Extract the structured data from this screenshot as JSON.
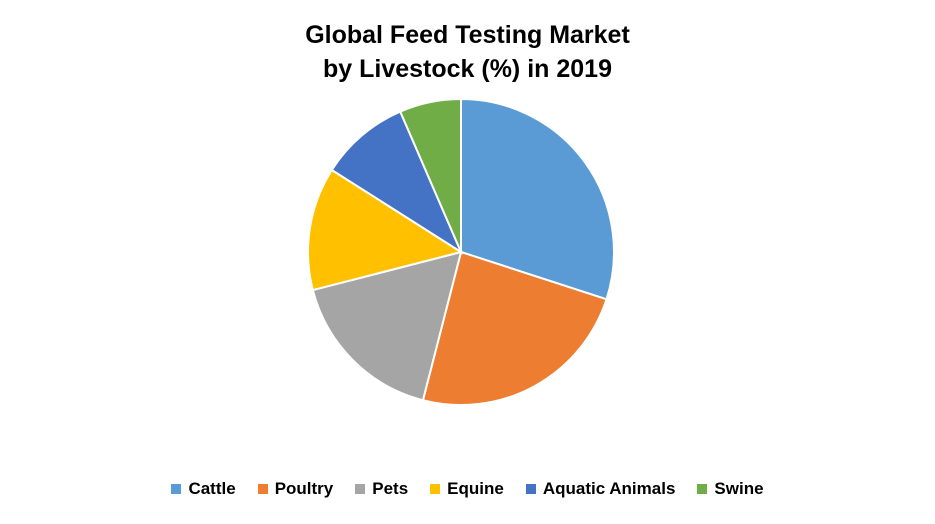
{
  "chart_data": {
    "type": "pie",
    "title_line1": "Global Feed Testing Market",
    "title_line2": "by Livestock (%) in 2019",
    "legend_position": "bottom",
    "slices": [
      {
        "label": "Cattle",
        "value": 30,
        "color": "#5B9BD5"
      },
      {
        "label": "Poultry",
        "value": 24,
        "color": "#ED7D31"
      },
      {
        "label": "Pets",
        "value": 17,
        "color": "#A5A5A5"
      },
      {
        "label": "Equine",
        "value": 13,
        "color": "#FFC000"
      },
      {
        "label": "Aquatic Animals",
        "value": 9.5,
        "color": "#4472C4"
      },
      {
        "label": "Swine",
        "value": 6.5,
        "color": "#70AD47"
      }
    ]
  }
}
